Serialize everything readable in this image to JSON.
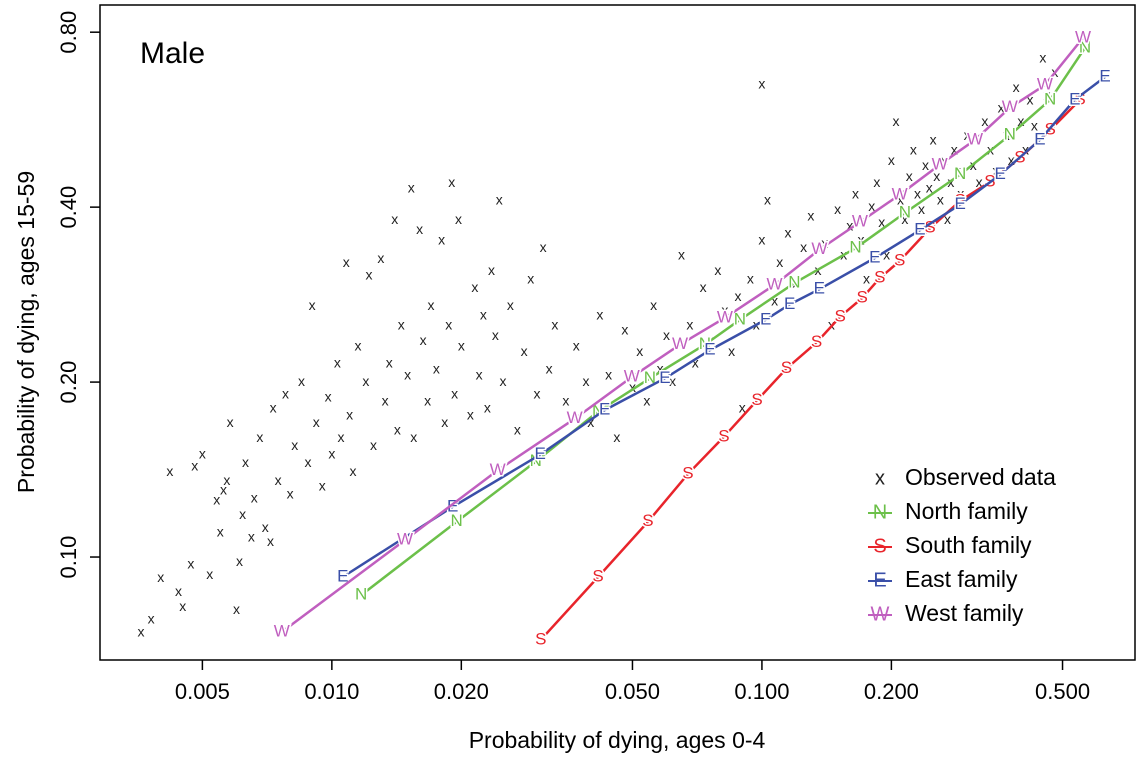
{
  "chart_data": {
    "type": "scatter",
    "annotation": "Male",
    "x_label": "Probability of dying, ages 0-4",
    "y_label": "Probability of dying, ages 15-59",
    "xscale": "log",
    "yscale": "log",
    "xlim": [
      0.00289,
      0.737
    ],
    "ylim": [
      0.0665,
      0.891
    ],
    "xticks": [
      0.005,
      {
        "value": 0.01,
        "label": "0.010"
      },
      {
        "value": 0.02,
        "label": "0.020"
      },
      {
        "value": 0.05,
        "label": "0.050"
      },
      {
        "value": 0.1,
        "label": "0.100"
      },
      {
        "value": 0.2,
        "label": "0.200"
      },
      {
        "value": 0.5,
        "label": "0.500"
      }
    ],
    "yticks": [
      {
        "value": 0.1,
        "label": "0.10"
      },
      {
        "value": 0.2,
        "label": "0.20"
      },
      {
        "value": 0.4,
        "label": "0.40"
      },
      {
        "value": 0.8,
        "label": "0.80"
      }
    ],
    "legend": "bottomright",
    "series": [
      {
        "name": "Observed data",
        "marker": "x",
        "color": "#222222",
        "x": [
          0.0036,
          0.0038,
          0.004,
          0.0042,
          0.0044,
          0.0045,
          0.0047,
          0.0048,
          0.005,
          0.0052,
          0.0054,
          0.0055,
          0.0056,
          0.0057,
          0.0058,
          0.006,
          0.0061,
          0.0062,
          0.0063,
          0.0065,
          0.0066,
          0.0068,
          0.007,
          0.0072,
          0.0073,
          0.0075,
          0.0078,
          0.008,
          0.0082,
          0.0085,
          0.0088,
          0.009,
          0.0092,
          0.0095,
          0.0098,
          0.01,
          0.0103,
          0.0105,
          0.0108,
          0.011,
          0.0112,
          0.0115,
          0.012,
          0.0122,
          0.0125,
          0.013,
          0.0133,
          0.0136,
          0.014,
          0.0142,
          0.0145,
          0.015,
          0.0153,
          0.0155,
          0.016,
          0.0163,
          0.0167,
          0.017,
          0.0175,
          0.018,
          0.0183,
          0.0187,
          0.019,
          0.0193,
          0.0197,
          0.02,
          0.021,
          0.0215,
          0.022,
          0.0225,
          0.023,
          0.0235,
          0.024,
          0.0245,
          0.025,
          0.026,
          0.027,
          0.028,
          0.029,
          0.03,
          0.031,
          0.032,
          0.033,
          0.035,
          0.037,
          0.039,
          0.04,
          0.042,
          0.044,
          0.046,
          0.048,
          0.05,
          0.052,
          0.054,
          0.056,
          0.058,
          0.06,
          0.062,
          0.065,
          0.068,
          0.07,
          0.073,
          0.076,
          0.079,
          0.082,
          0.085,
          0.088,
          0.09,
          0.094,
          0.097,
          0.1,
          0.1,
          0.103,
          0.107,
          0.11,
          0.115,
          0.12,
          0.125,
          0.13,
          0.135,
          0.14,
          0.145,
          0.15,
          0.155,
          0.16,
          0.165,
          0.17,
          0.175,
          0.18,
          0.185,
          0.19,
          0.195,
          0.2,
          0.205,
          0.21,
          0.215,
          0.22,
          0.225,
          0.23,
          0.235,
          0.24,
          0.245,
          0.25,
          0.255,
          0.26,
          0.265,
          0.27,
          0.275,
          0.28,
          0.285,
          0.29,
          0.3,
          0.31,
          0.32,
          0.33,
          0.34,
          0.35,
          0.36,
          0.37,
          0.38,
          0.39,
          0.4,
          0.41,
          0.42,
          0.43,
          0.45,
          0.46,
          0.48
        ],
        "values": [
          0.074,
          0.078,
          0.092,
          0.14,
          0.087,
          0.082,
          0.097,
          0.143,
          0.15,
          0.093,
          0.125,
          0.11,
          0.13,
          0.135,
          0.17,
          0.081,
          0.098,
          0.118,
          0.145,
          0.108,
          0.126,
          0.16,
          0.112,
          0.106,
          0.18,
          0.135,
          0.19,
          0.128,
          0.155,
          0.2,
          0.145,
          0.27,
          0.17,
          0.132,
          0.188,
          0.15,
          0.215,
          0.16,
          0.32,
          0.175,
          0.14,
          0.23,
          0.2,
          0.305,
          0.155,
          0.325,
          0.185,
          0.215,
          0.38,
          0.165,
          0.25,
          0.205,
          0.43,
          0.16,
          0.365,
          0.235,
          0.185,
          0.27,
          0.21,
          0.35,
          0.17,
          0.25,
          0.44,
          0.19,
          0.38,
          0.23,
          0.175,
          0.29,
          0.205,
          0.26,
          0.18,
          0.31,
          0.24,
          0.41,
          0.2,
          0.27,
          0.165,
          0.225,
          0.3,
          0.19,
          0.34,
          0.21,
          0.25,
          0.185,
          0.23,
          0.2,
          0.17,
          0.26,
          0.205,
          0.16,
          0.245,
          0.195,
          0.225,
          0.185,
          0.27,
          0.21,
          0.24,
          0.2,
          0.33,
          0.25,
          0.215,
          0.29,
          0.235,
          0.31,
          0.265,
          0.225,
          0.28,
          0.18,
          0.3,
          0.25,
          0.35,
          0.65,
          0.41,
          0.275,
          0.32,
          0.36,
          0.295,
          0.34,
          0.385,
          0.31,
          0.345,
          0.25,
          0.395,
          0.33,
          0.37,
          0.42,
          0.35,
          0.3,
          0.4,
          0.44,
          0.375,
          0.33,
          0.48,
          0.56,
          0.41,
          0.38,
          0.45,
          0.5,
          0.42,
          0.395,
          0.47,
          0.43,
          0.52,
          0.45,
          0.41,
          0.48,
          0.38,
          0.44,
          0.5,
          0.46,
          0.42,
          0.53,
          0.47,
          0.44,
          0.56,
          0.5,
          0.46,
          0.59,
          0.53,
          0.48,
          0.64,
          0.56,
          0.5,
          0.61,
          0.55,
          0.72,
          0.62,
          0.68
        ]
      },
      {
        "name": "North family",
        "marker": "N",
        "color": "#6cc04a",
        "x": [
          0.0117,
          0.0195,
          0.0298,
          0.0416,
          0.0549,
          0.0737,
          0.0889,
          0.119,
          0.165,
          0.215,
          0.289,
          0.377,
          0.468,
          0.564
        ],
        "values": [
          0.086,
          0.115,
          0.146,
          0.178,
          0.203,
          0.232,
          0.256,
          0.296,
          0.34,
          0.391,
          0.455,
          0.532,
          0.612,
          0.752
        ]
      },
      {
        "name": "South family",
        "marker": "S",
        "color": "#e8242b",
        "x": [
          0.0306,
          0.0416,
          0.0543,
          0.0673,
          0.0816,
          0.0974,
          0.114,
          0.134,
          0.152,
          0.171,
          0.188,
          0.209,
          0.246,
          0.289,
          0.339,
          0.398,
          0.468,
          0.549
        ],
        "values": [
          0.072,
          0.0924,
          0.115,
          0.139,
          0.161,
          0.186,
          0.211,
          0.234,
          0.259,
          0.279,
          0.302,
          0.323,
          0.368,
          0.41,
          0.442,
          0.486,
          0.543,
          0.612
        ]
      },
      {
        "name": "East family",
        "marker": "E",
        "color": "#3a4fa8",
        "x": [
          0.0106,
          0.0191,
          0.0305,
          0.0431,
          0.0595,
          0.0757,
          0.102,
          0.116,
          0.136,
          0.183,
          0.233,
          0.289,
          0.358,
          0.443,
          0.534,
          0.628
        ],
        "values": [
          0.0924,
          0.122,
          0.15,
          0.179,
          0.203,
          0.227,
          0.256,
          0.272,
          0.289,
          0.327,
          0.365,
          0.404,
          0.455,
          0.522,
          0.612,
          0.67
        ]
      },
      {
        "name": "West family",
        "marker": "W",
        "color": "#c05fbf",
        "x": [
          0.00765,
          0.0148,
          0.0243,
          0.0367,
          0.0498,
          0.0645,
          0.082,
          0.107,
          0.136,
          0.169,
          0.209,
          0.259,
          0.313,
          0.377,
          0.455,
          0.558
        ],
        "values": [
          0.0743,
          0.107,
          0.141,
          0.173,
          0.204,
          0.232,
          0.258,
          0.294,
          0.338,
          0.377,
          0.42,
          0.473,
          0.522,
          0.593,
          0.649,
          0.782
        ]
      }
    ]
  }
}
